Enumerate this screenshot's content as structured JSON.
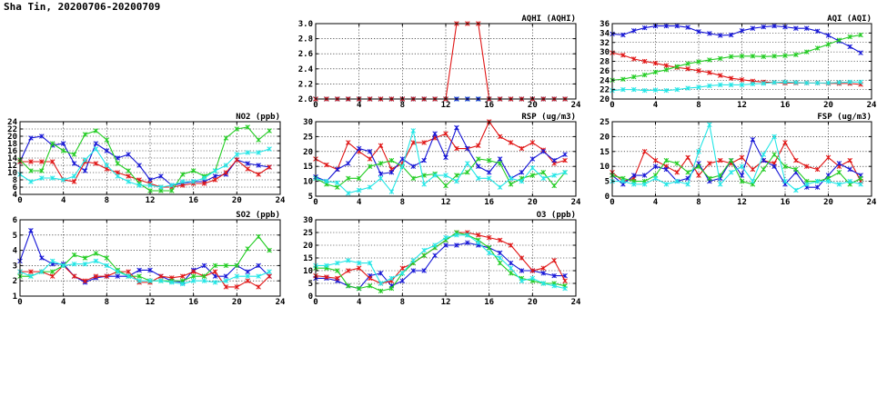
{
  "page": {
    "title": "Sha Tin, 20200706-20200709"
  },
  "colors": {
    "blue": "#1515d6",
    "red": "#e01515",
    "green": "#22cc22",
    "cyan": "#22e6e6",
    "grid": "#000000"
  },
  "chart_data": [
    {
      "id": "aqhi",
      "type": "line",
      "title": "AQHI (AQHI)",
      "xlim": [
        0,
        24
      ],
      "ylim": [
        2.0,
        3.0
      ],
      "xticks": [
        0,
        4,
        8,
        12,
        16,
        20,
        24
      ],
      "yticks": [
        "2.0",
        "2.2",
        "2.4",
        "2.6",
        "2.8",
        "3.0"
      ],
      "x": [
        0,
        1,
        2,
        3,
        4,
        5,
        6,
        7,
        8,
        9,
        10,
        11,
        12,
        13,
        14,
        15,
        16,
        17,
        18,
        19,
        20,
        21,
        22,
        23
      ],
      "series": [
        {
          "color": "green",
          "values": [
            2,
            2,
            2,
            2,
            2,
            2,
            2,
            2,
            2,
            2,
            2,
            2,
            2,
            2,
            2,
            2,
            2,
            2,
            2,
            2,
            2,
            2,
            2,
            2
          ]
        },
        {
          "color": "cyan",
          "values": [
            2,
            2,
            2,
            2,
            2,
            2,
            2,
            2,
            2,
            2,
            2,
            2,
            2,
            2,
            2,
            2,
            2,
            2,
            2,
            2,
            2,
            2,
            2,
            2
          ]
        },
        {
          "color": "blue",
          "values": [
            2,
            2,
            2,
            2,
            2,
            2,
            2,
            2,
            2,
            2,
            2,
            2,
            2,
            2,
            2,
            2,
            2,
            2,
            2,
            2,
            2,
            2,
            2,
            2
          ]
        },
        {
          "color": "red",
          "values": [
            2,
            2,
            2,
            2,
            2,
            2,
            2,
            2,
            2,
            2,
            2,
            2,
            2,
            3,
            3,
            3,
            2,
            2,
            2,
            2,
            2,
            2,
            2,
            2
          ]
        }
      ]
    },
    {
      "id": "aqi",
      "type": "line",
      "title": "AQI (AQI)",
      "xlim": [
        0,
        24
      ],
      "ylim": [
        20,
        36
      ],
      "xticks": [
        0,
        4,
        8,
        12,
        16,
        20,
        24
      ],
      "yticks": [
        "20",
        "22",
        "24",
        "26",
        "28",
        "30",
        "32",
        "34",
        "36"
      ],
      "x": [
        0,
        1,
        2,
        3,
        4,
        5,
        6,
        7,
        8,
        9,
        10,
        11,
        12,
        13,
        14,
        15,
        16,
        17,
        18,
        19,
        20,
        21,
        22,
        23
      ],
      "series": [
        {
          "color": "blue",
          "values": [
            33.8,
            33.6,
            34.5,
            35.1,
            35.5,
            35.5,
            35.5,
            35.2,
            34.3,
            33.9,
            33.5,
            33.6,
            34.5,
            35.0,
            35.3,
            35.5,
            35.3,
            35.0,
            35.0,
            34.4,
            33.5,
            32.3,
            31.1,
            29.8
          ]
        },
        {
          "color": "red",
          "values": [
            29.8,
            29.3,
            28.5,
            28.0,
            27.6,
            27.1,
            26.7,
            26.4,
            26.0,
            25.6,
            25.0,
            24.4,
            24.1,
            23.8,
            23.6,
            23.5,
            23.4,
            23.4,
            23.4,
            23.4,
            23.3,
            23.3,
            23.3,
            23.1
          ]
        },
        {
          "color": "green",
          "values": [
            24.0,
            24.2,
            24.7,
            25.1,
            25.7,
            26.2,
            26.9,
            27.5,
            27.9,
            28.3,
            28.6,
            29.0,
            29.1,
            29.1,
            29.0,
            29.1,
            29.2,
            29.4,
            30.0,
            30.8,
            31.6,
            32.5,
            33.2,
            33.6
          ]
        },
        {
          "color": "cyan",
          "values": [
            21.8,
            22.0,
            22.0,
            21.8,
            21.9,
            21.8,
            22.0,
            22.3,
            22.5,
            22.8,
            23.0,
            23.0,
            23.0,
            23.2,
            23.3,
            23.5,
            23.6,
            23.5,
            23.4,
            23.4,
            23.4,
            23.5,
            23.6,
            23.6
          ]
        }
      ]
    },
    {
      "id": "no2",
      "type": "line",
      "title": "NO2 (ppb)",
      "xlim": [
        0,
        24
      ],
      "ylim": [
        4,
        24
      ],
      "xticks": [
        0,
        4,
        8,
        12,
        16,
        20,
        24
      ],
      "yticks": [
        "4",
        "6",
        "8",
        "10",
        "12",
        "14",
        "16",
        "18",
        "20",
        "22",
        "24"
      ],
      "x": [
        0,
        1,
        2,
        3,
        4,
        5,
        6,
        7,
        8,
        9,
        10,
        11,
        12,
        13,
        14,
        15,
        16,
        17,
        18,
        19,
        20,
        21,
        22,
        23
      ],
      "series": [
        {
          "color": "blue",
          "values": [
            13,
            19.5,
            20,
            17.5,
            18,
            12.5,
            10.5,
            18,
            16,
            14,
            15,
            12,
            8,
            9,
            6.5,
            7,
            7.5,
            7.5,
            9,
            9.5,
            13.5,
            12.5,
            12,
            11.5
          ]
        },
        {
          "color": "red",
          "values": [
            13,
            13,
            13,
            13,
            8,
            7.5,
            13,
            12.5,
            11,
            10,
            9,
            8,
            7,
            6,
            6,
            6.5,
            7,
            7,
            8,
            10,
            13.5,
            11,
            9.5,
            11.5
          ]
        },
        {
          "color": "green",
          "values": [
            13.5,
            10.5,
            10.5,
            18,
            16,
            15,
            20.5,
            21.5,
            19,
            12.5,
            10.5,
            7,
            5,
            5,
            5,
            9.5,
            10.5,
            9,
            10.5,
            19.5,
            22,
            22.5,
            19,
            21.5
          ]
        },
        {
          "color": "cyan",
          "values": [
            9.5,
            7.5,
            8.5,
            8.5,
            8,
            9,
            13.5,
            16.5,
            12,
            9,
            7.5,
            6.5,
            6.5,
            6,
            6.5,
            7.5,
            7.5,
            8.5,
            10.5,
            12,
            15,
            15.5,
            15.5,
            16.5
          ]
        }
      ]
    },
    {
      "id": "rsp",
      "type": "line",
      "title": "RSP (ug/m3)",
      "xlim": [
        0,
        24
      ],
      "ylim": [
        5,
        30
      ],
      "xticks": [
        0,
        4,
        8,
        12,
        16,
        20,
        24
      ],
      "yticks": [
        "5",
        "10",
        "15",
        "20",
        "25",
        "30"
      ],
      "x": [
        0,
        1,
        2,
        3,
        4,
        5,
        6,
        7,
        8,
        9,
        10,
        11,
        12,
        13,
        14,
        15,
        16,
        17,
        18,
        19,
        20,
        21,
        22,
        23
      ],
      "series": [
        {
          "color": "red",
          "values": [
            17.5,
            15.5,
            14,
            23,
            20,
            17.5,
            22,
            14,
            16,
            23,
            23,
            24.5,
            26,
            21,
            21,
            22,
            30,
            25,
            23,
            21,
            23,
            20.5,
            16,
            17
          ]
        },
        {
          "color": "blue",
          "values": [
            11.5,
            10,
            14,
            16,
            21,
            20,
            12.5,
            13,
            17.5,
            15,
            17,
            26,
            18,
            28,
            21,
            15,
            13,
            17.5,
            11,
            13,
            17.5,
            20,
            17,
            19
          ]
        },
        {
          "color": "green",
          "values": [
            11,
            9,
            8,
            11,
            11,
            15,
            16,
            17,
            15,
            11,
            12,
            12.5,
            8.5,
            12,
            13,
            17.5,
            17,
            16,
            9,
            11,
            12,
            13,
            8.5,
            13
          ]
        },
        {
          "color": "cyan",
          "values": [
            11,
            10,
            9.5,
            6,
            7,
            8,
            11,
            6.5,
            15,
            27,
            9,
            12,
            12,
            10,
            16,
            11,
            11,
            8,
            11,
            10,
            14.5,
            11,
            12,
            13
          ]
        }
      ]
    },
    {
      "id": "fsp",
      "type": "line",
      "title": "FSP (ug/m3)",
      "xlim": [
        0,
        24
      ],
      "ylim": [
        0,
        25
      ],
      "xticks": [
        0,
        4,
        8,
        12,
        16,
        20,
        24
      ],
      "yticks": [
        "0",
        "5",
        "10",
        "15",
        "20",
        "25"
      ],
      "x": [
        0,
        1,
        2,
        3,
        4,
        5,
        6,
        7,
        8,
        9,
        10,
        11,
        12,
        13,
        14,
        15,
        16,
        17,
        18,
        19,
        20,
        21,
        22,
        23
      ],
      "series": [
        {
          "color": "red",
          "values": [
            8,
            5,
            6,
            15,
            12,
            10,
            8,
            13,
            7,
            11,
            12,
            11,
            13,
            9,
            12,
            11,
            18,
            12,
            10,
            9,
            13,
            10,
            12,
            5
          ]
        },
        {
          "color": "blue",
          "values": [
            7,
            4,
            7,
            7,
            10,
            9,
            5,
            6,
            11,
            5,
            6,
            12,
            7,
            19,
            12,
            10,
            4,
            8,
            3,
            3,
            7,
            11,
            9,
            7
          ]
        },
        {
          "color": "green",
          "values": [
            7,
            6,
            5,
            5,
            7,
            12,
            11,
            8,
            10,
            6,
            7,
            12,
            5,
            4,
            9,
            14,
            10,
            9,
            5,
            5,
            6,
            8,
            4,
            6
          ]
        },
        {
          "color": "cyan",
          "values": [
            5,
            5,
            4,
            4,
            6,
            4,
            5,
            4,
            15,
            24,
            4,
            8,
            10,
            5,
            14,
            20,
            5,
            2,
            4,
            5,
            5,
            4,
            5,
            4
          ]
        }
      ]
    },
    {
      "id": "so2",
      "type": "line",
      "title": "SO2 (ppb)",
      "xlim": [
        0,
        24
      ],
      "ylim": [
        1,
        6
      ],
      "xticks": [
        0,
        4,
        8,
        12,
        16,
        20,
        24
      ],
      "yticks": [
        "1",
        "2",
        "3",
        "4",
        "5",
        "6"
      ],
      "x": [
        0,
        1,
        2,
        3,
        4,
        5,
        6,
        7,
        8,
        9,
        10,
        11,
        12,
        13,
        14,
        15,
        16,
        17,
        18,
        19,
        20,
        21,
        22,
        23
      ],
      "series": [
        {
          "color": "blue",
          "values": [
            3.3,
            5.3,
            3.5,
            3.1,
            3.1,
            2.3,
            1.9,
            2.2,
            2.3,
            2.3,
            2.3,
            2.7,
            2.7,
            2.3,
            2.0,
            1.9,
            2.7,
            3.0,
            2.3,
            2.3,
            3.0,
            2.6,
            3.0,
            2.3
          ]
        },
        {
          "color": "red",
          "values": [
            2.6,
            2.6,
            2.6,
            2.3,
            3.0,
            2.3,
            2.0,
            2.3,
            2.3,
            2.6,
            2.6,
            1.9,
            1.9,
            2.3,
            2.2,
            2.3,
            2.6,
            2.3,
            2.6,
            1.6,
            1.6,
            2.0,
            1.6,
            2.3
          ]
        },
        {
          "color": "green",
          "values": [
            2.3,
            2.3,
            2.6,
            2.6,
            3.0,
            3.7,
            3.5,
            3.8,
            3.5,
            2.7,
            2.3,
            2.3,
            2.0,
            2.0,
            2.0,
            2.0,
            2.3,
            2.3,
            3.0,
            3.0,
            3.0,
            4.1,
            4.9,
            4.0
          ]
        },
        {
          "color": "cyan",
          "values": [
            2.6,
            2.3,
            2.6,
            3.3,
            3.0,
            3.1,
            3.1,
            3.3,
            3.0,
            2.6,
            2.3,
            2.0,
            2.0,
            2.0,
            1.9,
            1.8,
            2.0,
            2.0,
            1.9,
            2.0,
            2.3,
            2.3,
            2.3,
            2.6
          ]
        }
      ]
    },
    {
      "id": "o3",
      "type": "line",
      "title": "O3 (ppb)",
      "xlim": [
        0,
        24
      ],
      "ylim": [
        0,
        30
      ],
      "xticks": [
        0,
        4,
        8,
        12,
        16,
        20,
        24
      ],
      "yticks": [
        "0",
        "5",
        "10",
        "15",
        "20",
        "25",
        "30"
      ],
      "x": [
        0,
        1,
        2,
        3,
        4,
        5,
        6,
        7,
        8,
        9,
        10,
        11,
        12,
        13,
        14,
        15,
        16,
        17,
        18,
        19,
        20,
        21,
        22,
        23
      ],
      "series": [
        {
          "color": "blue",
          "values": [
            7,
            7,
            6,
            4,
            3,
            8,
            9,
            4,
            6,
            10,
            10,
            16,
            20,
            20,
            21,
            20,
            19,
            17,
            13,
            10,
            10,
            9,
            8,
            8
          ]
        },
        {
          "color": "red",
          "values": [
            8,
            7.5,
            7,
            10,
            11,
            7,
            5,
            6,
            11,
            13,
            16,
            19,
            22,
            25,
            25,
            24,
            23,
            22,
            20,
            15,
            10,
            11,
            14,
            6
          ]
        },
        {
          "color": "green",
          "values": [
            11,
            11,
            10,
            4,
            3,
            4,
            2,
            3,
            9,
            13,
            16,
            19,
            22,
            25,
            24,
            22,
            19,
            13,
            9,
            7,
            6,
            5,
            5,
            4
          ]
        },
        {
          "color": "cyan",
          "values": [
            12,
            12,
            13,
            14,
            13,
            13,
            5,
            7,
            9,
            14,
            18,
            20,
            23,
            24,
            24,
            21,
            17,
            15,
            11,
            6,
            7,
            5,
            4,
            3
          ]
        }
      ]
    }
  ]
}
